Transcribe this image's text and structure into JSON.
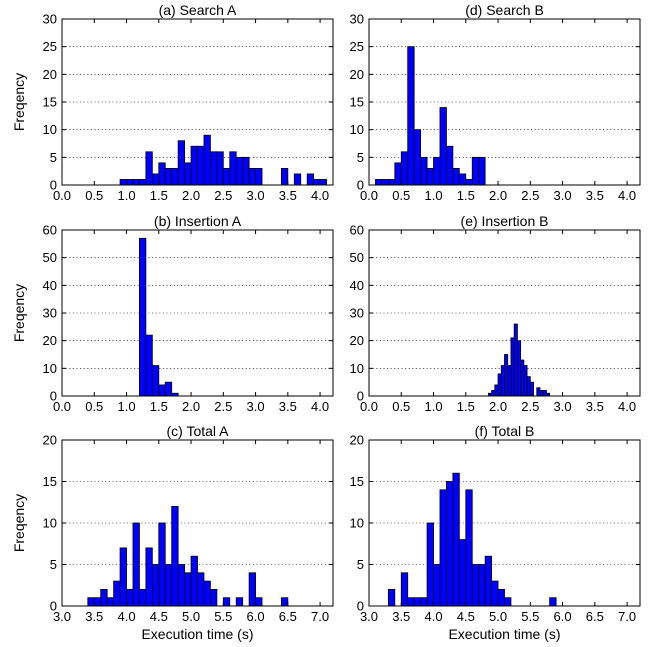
{
  "figure": {
    "bar_color": "#0000ff",
    "bar_edge": "#000000"
  },
  "chart_data": [
    {
      "type": "bar",
      "title": "(a) Search A",
      "xlabel": "",
      "ylabel": "Freqency",
      "xlim": [
        0.0,
        4.2
      ],
      "ylim": [
        0,
        30
      ],
      "bin_width": 0.1,
      "xticks": [
        "0.0",
        "0.5",
        "1.0",
        "1.5",
        "2.0",
        "2.5",
        "3.0",
        "3.5",
        "4.0"
      ],
      "yticks": [
        "0",
        "5",
        "10",
        "15",
        "20",
        "25",
        "30"
      ],
      "x": [
        0.9,
        1.0,
        1.1,
        1.2,
        1.3,
        1.4,
        1.5,
        1.6,
        1.7,
        1.8,
        1.9,
        2.0,
        2.1,
        2.2,
        2.3,
        2.4,
        2.5,
        2.6,
        2.7,
        2.8,
        2.9,
        3.0,
        3.4,
        3.6,
        3.8,
        3.9,
        4.0
      ],
      "values": [
        1,
        1,
        1,
        1,
        6,
        2,
        4,
        3,
        3,
        8,
        4,
        7,
        7,
        9,
        6,
        6,
        3,
        6,
        5,
        5,
        3,
        3,
        3,
        2,
        2,
        1,
        1
      ]
    },
    {
      "type": "bar",
      "title": "(d) Search B",
      "xlabel": "",
      "ylabel": "",
      "xlim": [
        0.0,
        4.2
      ],
      "ylim": [
        0,
        30
      ],
      "bin_width": 0.1,
      "xticks": [
        "0.0",
        "0.5",
        "1.0",
        "1.5",
        "2.0",
        "2.5",
        "3.0",
        "3.5",
        "4.0"
      ],
      "yticks": [
        "0",
        "5",
        "10",
        "15",
        "20",
        "25",
        "30"
      ],
      "x": [
        0.1,
        0.2,
        0.3,
        0.4,
        0.5,
        0.6,
        0.7,
        0.8,
        0.9,
        1.0,
        1.1,
        1.2,
        1.3,
        1.4,
        1.5,
        1.6,
        1.7
      ],
      "values": [
        1,
        1,
        1,
        4,
        6,
        25,
        10,
        5,
        3,
        5,
        14,
        7,
        3,
        2,
        1,
        5,
        5
      ]
    },
    {
      "type": "bar",
      "title": "(b) Insertion A",
      "xlabel": "",
      "ylabel": "Freqency",
      "xlim": [
        0.0,
        4.2
      ],
      "ylim": [
        0,
        60
      ],
      "bin_width": 0.1,
      "xticks": [
        "0.0",
        "0.5",
        "1.0",
        "1.5",
        "2.0",
        "2.5",
        "3.0",
        "3.5",
        "4.0"
      ],
      "yticks": [
        "0",
        "10",
        "20",
        "30",
        "40",
        "50",
        "60"
      ],
      "x": [
        1.2,
        1.3,
        1.4,
        1.5,
        1.6,
        1.7
      ],
      "values": [
        57,
        22,
        11,
        4,
        5,
        1
      ]
    },
    {
      "type": "bar",
      "title": "(e) Insertion B",
      "xlabel": "",
      "ylabel": "",
      "xlim": [
        0.0,
        4.2
      ],
      "ylim": [
        0,
        60
      ],
      "bin_width": 0.05,
      "xticks": [
        "0.0",
        "0.5",
        "1.0",
        "1.5",
        "2.0",
        "2.5",
        "3.0",
        "3.5",
        "4.0"
      ],
      "yticks": [
        "0",
        "10",
        "20",
        "30",
        "40",
        "50",
        "60"
      ],
      "x": [
        1.85,
        1.9,
        1.95,
        2.0,
        2.05,
        2.1,
        2.15,
        2.2,
        2.25,
        2.3,
        2.35,
        2.4,
        2.45,
        2.5,
        2.6,
        2.65,
        2.7,
        2.75
      ],
      "values": [
        1,
        2,
        4,
        8,
        11,
        15,
        11,
        21,
        26,
        20,
        13,
        11,
        7,
        5,
        3,
        2,
        2,
        1
      ]
    },
    {
      "type": "bar",
      "title": "(c) Total A",
      "xlabel": "Execution time (s)",
      "ylabel": "Freqency",
      "xlim": [
        3.0,
        7.2
      ],
      "ylim": [
        0,
        20
      ],
      "bin_width": 0.1,
      "xticks": [
        "3.0",
        "3.5",
        "4.0",
        "4.5",
        "5.0",
        "5.5",
        "6.0",
        "6.5",
        "7.0"
      ],
      "yticks": [
        "0",
        "5",
        "10",
        "15",
        "20"
      ],
      "x": [
        3.4,
        3.5,
        3.6,
        3.7,
        3.8,
        3.9,
        4.0,
        4.1,
        4.2,
        4.3,
        4.4,
        4.5,
        4.6,
        4.7,
        4.8,
        4.9,
        5.0,
        5.1,
        5.2,
        5.3,
        5.5,
        5.7,
        5.9,
        6.0,
        6.4
      ],
      "values": [
        1,
        1,
        2,
        1,
        3,
        7,
        2,
        10,
        2,
        7,
        5,
        10,
        5,
        12,
        5,
        4,
        6,
        4,
        3,
        2,
        1,
        1,
        4,
        1,
        1
      ]
    },
    {
      "type": "bar",
      "title": "(f) Total B",
      "xlabel": "Execution time (s)",
      "ylabel": "",
      "xlim": [
        3.0,
        7.2
      ],
      "ylim": [
        0,
        20
      ],
      "bin_width": 0.1,
      "xticks": [
        "3.0",
        "3.5",
        "4.0",
        "4.5",
        "5.0",
        "5.5",
        "6.0",
        "6.5",
        "7.0"
      ],
      "yticks": [
        "0",
        "5",
        "10",
        "15",
        "20"
      ],
      "x": [
        3.3,
        3.5,
        3.6,
        3.7,
        3.8,
        3.9,
        4.0,
        4.1,
        4.2,
        4.3,
        4.4,
        4.5,
        4.6,
        4.7,
        4.8,
        4.9,
        5.0,
        5.1,
        5.8
      ],
      "values": [
        2,
        4,
        1,
        1,
        1,
        10,
        5,
        14,
        15,
        16,
        8,
        14,
        5,
        5,
        6,
        3,
        2,
        1,
        1
      ]
    }
  ]
}
